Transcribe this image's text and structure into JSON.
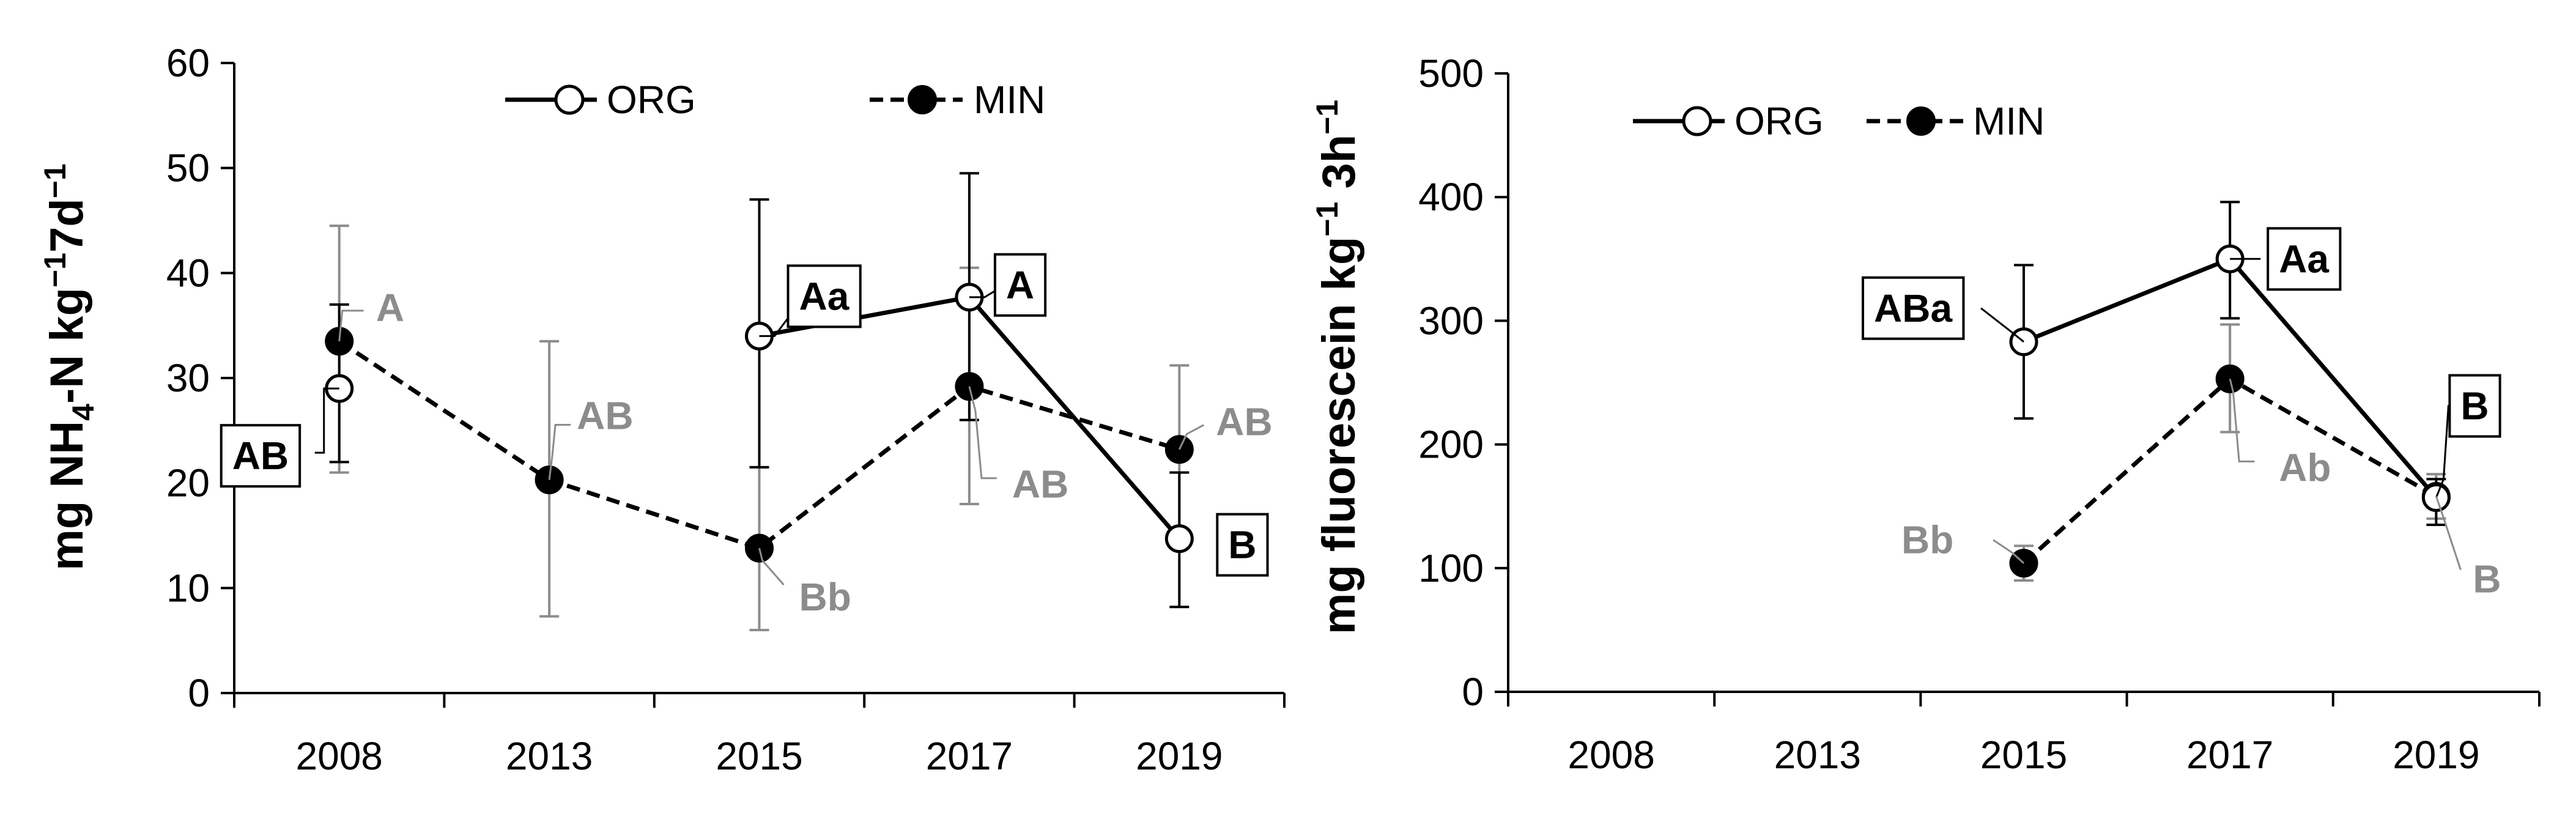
{
  "colors": {
    "black": "#000000",
    "gray": "#8c8c8c",
    "white": "#ffffff"
  },
  "chart_data": [
    {
      "type": "line",
      "title": "",
      "xlabel": "",
      "ylabel_parts": [
        "mg NH",
        "4",
        "-N kg",
        "−1",
        "7d",
        "−1"
      ],
      "categories": [
        "2008",
        "2013",
        "2015",
        "2017",
        "2019"
      ],
      "ylim": [
        0,
        60
      ],
      "yticks": [
        "0",
        "10",
        "20",
        "30",
        "40",
        "50",
        "60"
      ],
      "legend": {
        "position": "top-center",
        "items": [
          {
            "name": "ORG",
            "marker": "open-circle",
            "line": "solid"
          },
          {
            "name": "MIN",
            "marker": "filled-circle",
            "line": "dashed"
          }
        ]
      },
      "series": [
        {
          "name": "ORG",
          "segments": [
            [
              2,
              3,
              4
            ]
          ],
          "points": [
            {
              "i": 0,
              "value": 29,
              "err_lo": 22,
              "err_hi": 37,
              "label": "AB",
              "label_style": "box"
            },
            {
              "i": 2,
              "value": 34,
              "err_lo": 21.5,
              "err_hi": 47,
              "label": "Aa",
              "label_style": "box"
            },
            {
              "i": 3,
              "value": 37.7,
              "err_lo": 26,
              "err_hi": 49.5,
              "label": "A",
              "label_style": "box"
            },
            {
              "i": 4,
              "value": 14.7,
              "err_lo": 8.2,
              "err_hi": 21,
              "label": "B",
              "label_style": "box"
            }
          ]
        },
        {
          "name": "MIN",
          "segments": [
            [
              0,
              1,
              2,
              3,
              4
            ]
          ],
          "points": [
            {
              "i": 0,
              "value": 33.5,
              "err_lo": 21,
              "err_hi": 44.5,
              "label": "A",
              "label_style": "gray"
            },
            {
              "i": 1,
              "value": 20.3,
              "err_lo": 7.3,
              "err_hi": 33.5,
              "label": "AB",
              "label_style": "gray"
            },
            {
              "i": 2,
              "value": 13.8,
              "err_lo": 6,
              "err_hi": 21.5,
              "label": "Bb",
              "label_style": "gray"
            },
            {
              "i": 3,
              "value": 29.2,
              "err_lo": 18,
              "err_hi": 40.5,
              "label": "AB",
              "label_style": "gray"
            },
            {
              "i": 4,
              "value": 23.2,
              "err_lo": 15,
              "err_hi": 31.2,
              "label": "AB",
              "label_style": "gray"
            }
          ]
        }
      ]
    },
    {
      "type": "line",
      "title": "",
      "xlabel": "",
      "ylabel_parts": [
        "mg fluorescein kg",
        "−1",
        " 3h",
        "−1"
      ],
      "categories": [
        "2008",
        "2013",
        "2015",
        "2017",
        "2019"
      ],
      "ylim": [
        0,
        500
      ],
      "yticks": [
        "0",
        "100",
        "200",
        "300",
        "400",
        "500"
      ],
      "legend": {
        "position": "top-left",
        "items": [
          {
            "name": "ORG",
            "marker": "open-circle",
            "line": "solid"
          },
          {
            "name": "MIN",
            "marker": "filled-circle",
            "line": "dashed"
          }
        ]
      },
      "series": [
        {
          "name": "ORG",
          "segments": [
            [
              2,
              3,
              4
            ]
          ],
          "points": [
            {
              "i": 2,
              "value": 283,
              "err_lo": 221,
              "err_hi": 345,
              "label": "ABa",
              "label_style": "box"
            },
            {
              "i": 3,
              "value": 350,
              "err_lo": 302,
              "err_hi": 396,
              "label": "Aa",
              "label_style": "box"
            },
            {
              "i": 4,
              "value": 157,
              "err_lo": 135,
              "err_hi": 172,
              "label": "B",
              "label_style": "box"
            }
          ]
        },
        {
          "name": "MIN",
          "segments": [
            [
              2,
              3,
              4
            ]
          ],
          "points": [
            {
              "i": 2,
              "value": 104,
              "err_lo": 90,
              "err_hi": 118,
              "label": "Bb",
              "label_style": "gray"
            },
            {
              "i": 3,
              "value": 253,
              "err_lo": 210,
              "err_hi": 297,
              "label": "Ab",
              "label_style": "gray"
            },
            {
              "i": 4,
              "value": 158,
              "err_lo": 140,
              "err_hi": 176,
              "label": "B",
              "label_style": "gray"
            }
          ]
        }
      ]
    }
  ]
}
